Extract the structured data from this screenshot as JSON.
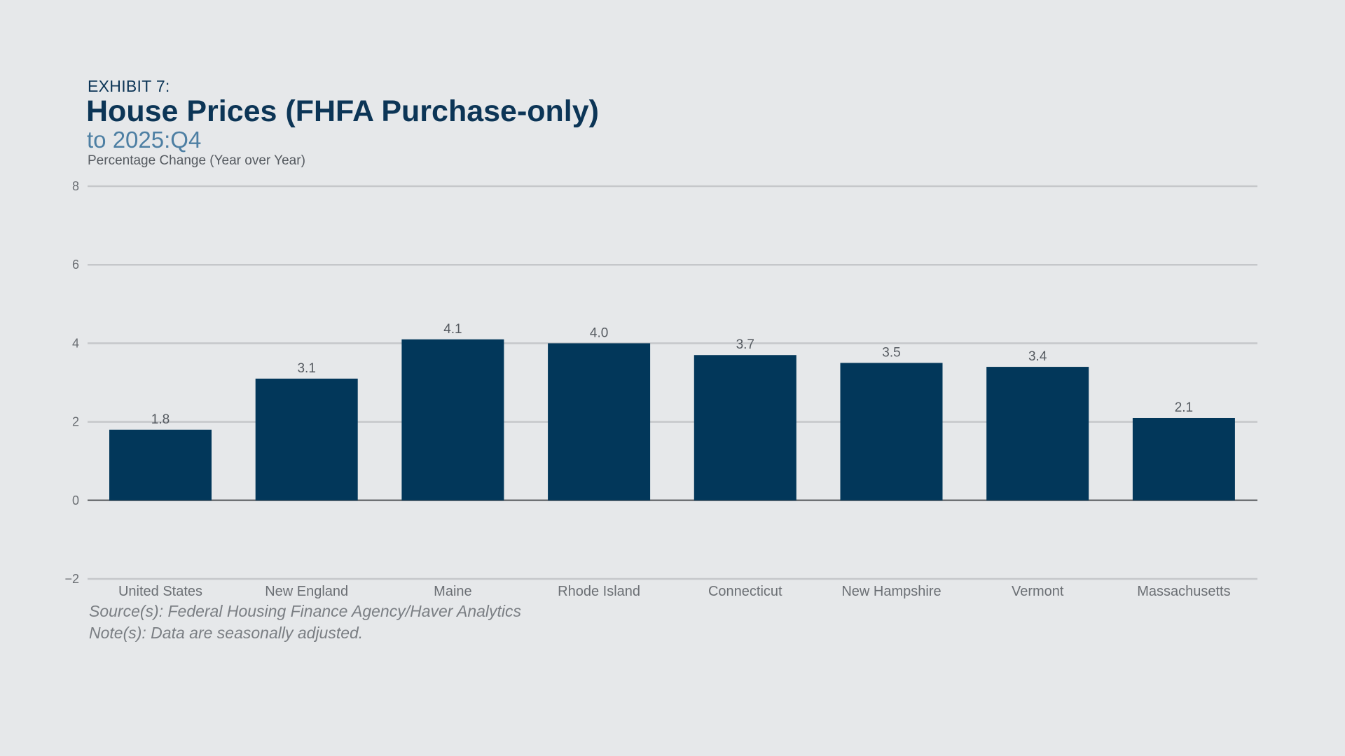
{
  "header": {
    "exhibit": "EXHIBIT 7:",
    "title": "House Prices (FHFA Purchase-only)",
    "subtitle": "to 2025:Q4",
    "units": "Percentage Change (Year over Year)"
  },
  "footer": {
    "source": "Source(s): Federal Housing Finance Agency/Haver Analytics",
    "note": "Note(s): Data are seasonally adjusted."
  },
  "colors": {
    "bar": "#02375a",
    "grid": "#c5c7ca",
    "zero_line": "#6e7174",
    "background": "#e6e8ea"
  },
  "chart_data": {
    "type": "bar",
    "title": "House Prices (FHFA Purchase-only)",
    "subtitle": "to 2025:Q4",
    "ylabel": "Percentage Change (Year over Year)",
    "xlabel": "",
    "categories": [
      "United States",
      "New England",
      "Maine",
      "Rhode Island",
      "Connecticut",
      "New Hampshire",
      "Vermont",
      "Massachusetts"
    ],
    "values": [
      1.8,
      3.1,
      4.1,
      4.0,
      3.7,
      3.5,
      3.4,
      2.1
    ],
    "data_labels": [
      "1.8",
      "3.1",
      "4.1",
      "4.0",
      "3.7",
      "3.5",
      "3.4",
      "2.1"
    ],
    "ylim": [
      -2,
      8
    ],
    "yticks": [
      8,
      6,
      4,
      2,
      0,
      -2
    ],
    "ytick_labels": [
      "8",
      "6",
      "4",
      "2",
      "0",
      "−2"
    ],
    "grid": true,
    "legend": "none"
  }
}
